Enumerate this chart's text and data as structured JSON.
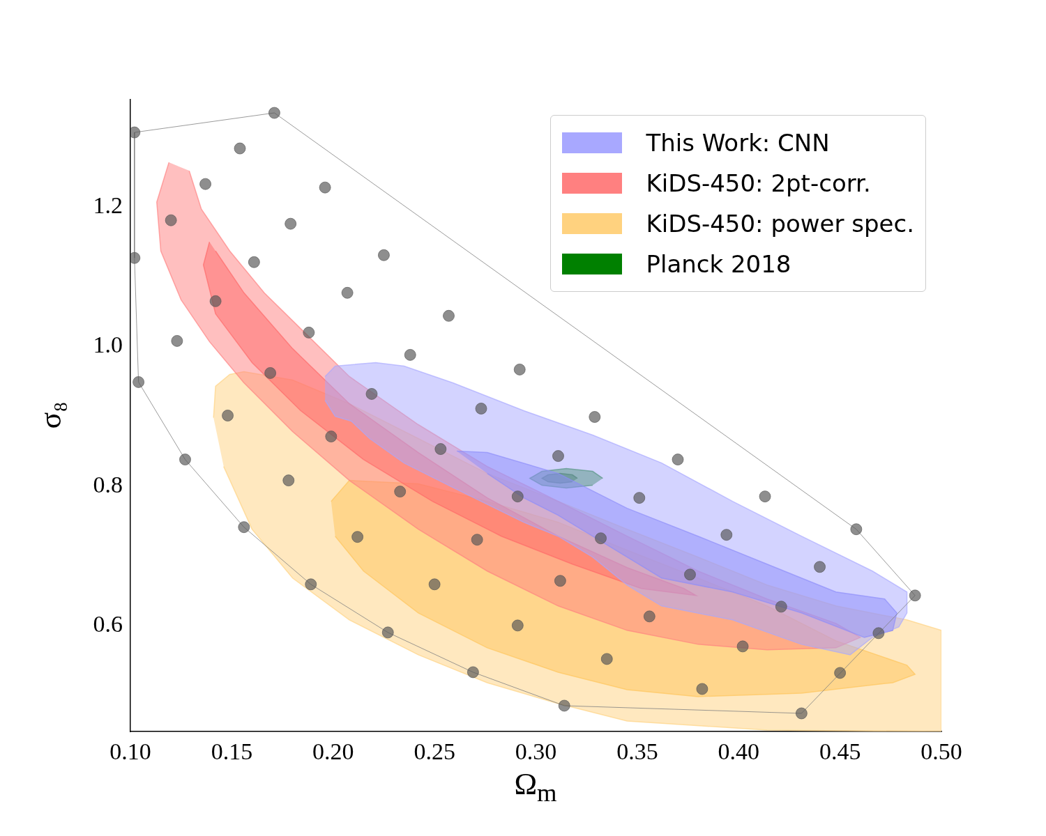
{
  "chart_data": {
    "type": "scatter",
    "xlabel": "Ω$_{m}$",
    "ylabel": "σ₈",
    "xlim": [
      0.1,
      0.5
    ],
    "ylim": [
      0.448,
      1.354
    ],
    "xticks": [
      {
        "value": 0.1,
        "label": "0.10"
      },
      {
        "value": 0.15,
        "label": "0.15"
      },
      {
        "value": 0.2,
        "label": "0.20"
      },
      {
        "value": 0.25,
        "label": "0.25"
      },
      {
        "value": 0.3,
        "label": "0.30"
      },
      {
        "value": 0.35,
        "label": "0.35"
      },
      {
        "value": 0.4,
        "label": "0.40"
      },
      {
        "value": 0.45,
        "label": "0.45"
      },
      {
        "value": 0.5,
        "label": "0.50"
      }
    ],
    "yticks": [
      0.6,
      0.8,
      {
        "value": 1,
        "label": "1.0"
      },
      1.2
    ],
    "grid": false,
    "legend": "top right",
    "series": [
      {
        "type": "area",
        "name": "This Work: CNN",
        "color": "#a8a8ff",
        "x": [
          0.196,
          0.201,
          0.221,
          0.235,
          0.259,
          0.294,
          0.328,
          0.362,
          0.397,
          0.431,
          0.466,
          0.483,
          0.483,
          0.479,
          0.466,
          0.455,
          0.431,
          0.397,
          0.362,
          0.345,
          0.328,
          0.311,
          0.294,
          0.259,
          0.235,
          0.218,
          0.209,
          0.201,
          0.196
        ],
        "values": [
          0.957,
          0.972,
          0.977,
          0.972,
          0.948,
          0.908,
          0.873,
          0.833,
          0.778,
          0.728,
          0.678,
          0.648,
          0.618,
          0.598,
          0.583,
          0.558,
          0.573,
          0.608,
          0.628,
          0.658,
          0.698,
          0.728,
          0.748,
          0.798,
          0.833,
          0.868,
          0.893,
          0.9,
          0.923
        ]
      },
      {
        "type": "area",
        "color": "#7272f5",
        "x": [
          0.261,
          0.276,
          0.311,
          0.345,
          0.38,
          0.414,
          0.448,
          0.472,
          0.478,
          0.476,
          0.462,
          0.431,
          0.397,
          0.362,
          0.328,
          0.311,
          0.294,
          0.276
        ],
        "values": [
          0.85,
          0.848,
          0.818,
          0.768,
          0.728,
          0.688,
          0.648,
          0.638,
          0.618,
          0.593,
          0.583,
          0.618,
          0.648,
          0.668,
          0.728,
          0.758,
          0.783,
          0.818
        ]
      },
      {
        "type": "area",
        "name": "KiDS-450: 2pt-corr.",
        "color": "#ff8080",
        "x": [
          0.119,
          0.113,
          0.115,
          0.125,
          0.139,
          0.156,
          0.18,
          0.208,
          0.242,
          0.276,
          0.311,
          0.345,
          0.38,
          0.414,
          0.448,
          0.46,
          0.448,
          0.414,
          0.38,
          0.345,
          0.311,
          0.276,
          0.242,
          0.208,
          0.187,
          0.166,
          0.149,
          0.135,
          0.129
        ],
        "values": [
          1.264,
          1.207,
          1.137,
          1.067,
          1.007,
          0.948,
          0.878,
          0.808,
          0.738,
          0.678,
          0.628,
          0.593,
          0.573,
          0.565,
          0.568,
          0.583,
          0.603,
          0.638,
          0.678,
          0.728,
          0.778,
          0.828,
          0.888,
          0.957,
          1.017,
          1.077,
          1.137,
          1.197,
          1.252
        ]
      },
      {
        "type": "area",
        "color": "#ff5050",
        "x": [
          0.139,
          0.136,
          0.142,
          0.16,
          0.184,
          0.215,
          0.249,
          0.283,
          0.318,
          0.352,
          0.379,
          0.373,
          0.345,
          0.311,
          0.276,
          0.242,
          0.208,
          0.18,
          0.156,
          0.142
        ],
        "values": [
          1.15,
          1.117,
          1.047,
          0.977,
          0.908,
          0.838,
          0.778,
          0.728,
          0.688,
          0.653,
          0.643,
          0.653,
          0.683,
          0.728,
          0.783,
          0.848,
          0.918,
          0.997,
          1.077,
          1.137
        ]
      },
      {
        "type": "area",
        "name": "KiDS-450: power spec.",
        "color": "#ffd27f",
        "x": [
          0.141,
          0.142,
          0.149,
          0.156,
          0.18,
          0.208,
          0.242,
          0.276,
          0.311,
          0.345,
          0.38,
          0.414,
          0.448,
          0.483,
          0.5,
          0.5,
          0.414,
          0.345,
          0.311,
          0.276,
          0.242,
          0.208,
          0.18,
          0.16,
          0.146
        ],
        "values": [
          0.898,
          0.943,
          0.96,
          0.964,
          0.952,
          0.918,
          0.868,
          0.818,
          0.778,
          0.738,
          0.698,
          0.658,
          0.628,
          0.608,
          0.593,
          0.448,
          0.45,
          0.463,
          0.488,
          0.518,
          0.558,
          0.608,
          0.668,
          0.738,
          0.828
        ]
      },
      {
        "type": "area",
        "color": "#ffb733",
        "x": [
          0.199,
          0.208,
          0.242,
          0.276,
          0.311,
          0.345,
          0.38,
          0.414,
          0.448,
          0.483,
          0.487,
          0.476,
          0.431,
          0.38,
          0.345,
          0.311,
          0.276,
          0.242,
          0.215,
          0.201
        ],
        "values": [
          0.778,
          0.808,
          0.803,
          0.778,
          0.748,
          0.708,
          0.668,
          0.628,
          0.578,
          0.543,
          0.53,
          0.518,
          0.503,
          0.498,
          0.508,
          0.533,
          0.568,
          0.618,
          0.678,
          0.728
        ]
      },
      {
        "type": "area",
        "name": "Planck 2018",
        "color": "#008000",
        "x": [
          0.333,
          0.328,
          0.315,
          0.303,
          0.297,
          0.303,
          0.315,
          0.328
        ],
        "values": [
          0.811,
          0.821,
          0.825,
          0.821,
          0.811,
          0.801,
          0.797,
          0.801
        ]
      },
      {
        "type": "area",
        "color": "#004d00",
        "x": [
          0.3205,
          0.318,
          0.312,
          0.306,
          0.303,
          0.306,
          0.312,
          0.318
        ],
        "values": [
          0.811,
          0.816,
          0.818,
          0.816,
          0.811,
          0.806,
          0.804,
          0.806
        ]
      },
      {
        "type": "line",
        "color": "#808080",
        "marker": "none",
        "x": [
          0.102,
          0.171,
          0.458,
          0.487
        ],
        "values": [
          1.307,
          1.335,
          0.738,
          0.643
        ]
      },
      {
        "type": "line",
        "color": "#808080",
        "marker": "none",
        "x": [
          0.102,
          0.102,
          0.104,
          0.127,
          0.156,
          0.189,
          0.227,
          0.269,
          0.314,
          0.431,
          0.487
        ],
        "values": [
          1.307,
          1.127,
          0.949,
          0.838,
          0.741,
          0.659,
          0.59,
          0.533,
          0.485,
          0.474,
          0.643
        ]
      },
      {
        "color": "#555555",
        "marker": "circle",
        "x": [
          0.102,
          0.171,
          0.154,
          0.137,
          0.196,
          0.12,
          0.179,
          0.102,
          0.161,
          0.225,
          0.142,
          0.207,
          0.257,
          0.123,
          0.188,
          0.238,
          0.104,
          0.169,
          0.292,
          0.219,
          0.148,
          0.273,
          0.329,
          0.199,
          0.253,
          0.311,
          0.127,
          0.37,
          0.178,
          0.233,
          0.291,
          0.351,
          0.413,
          0.156,
          0.212,
          0.271,
          0.332,
          0.394,
          0.458,
          0.376,
          0.44,
          0.189,
          0.25,
          0.312,
          0.487,
          0.421,
          0.356,
          0.291,
          0.227,
          0.469,
          0.402,
          0.335,
          0.269,
          0.45,
          0.382,
          0.314,
          0.431
        ],
        "values": [
          1.307,
          1.335,
          1.284,
          1.233,
          1.228,
          1.181,
          1.176,
          1.127,
          1.121,
          1.131,
          1.065,
          1.077,
          1.044,
          1.008,
          1.02,
          0.988,
          0.949,
          0.962,
          0.967,
          0.932,
          0.901,
          0.911,
          0.899,
          0.871,
          0.853,
          0.843,
          0.838,
          0.838,
          0.808,
          0.792,
          0.785,
          0.783,
          0.785,
          0.741,
          0.727,
          0.723,
          0.725,
          0.73,
          0.738,
          0.673,
          0.684,
          0.659,
          0.659,
          0.664,
          0.643,
          0.627,
          0.613,
          0.6,
          0.59,
          0.589,
          0.57,
          0.552,
          0.533,
          0.532,
          0.509,
          0.485,
          0.474
        ]
      }
    ]
  }
}
